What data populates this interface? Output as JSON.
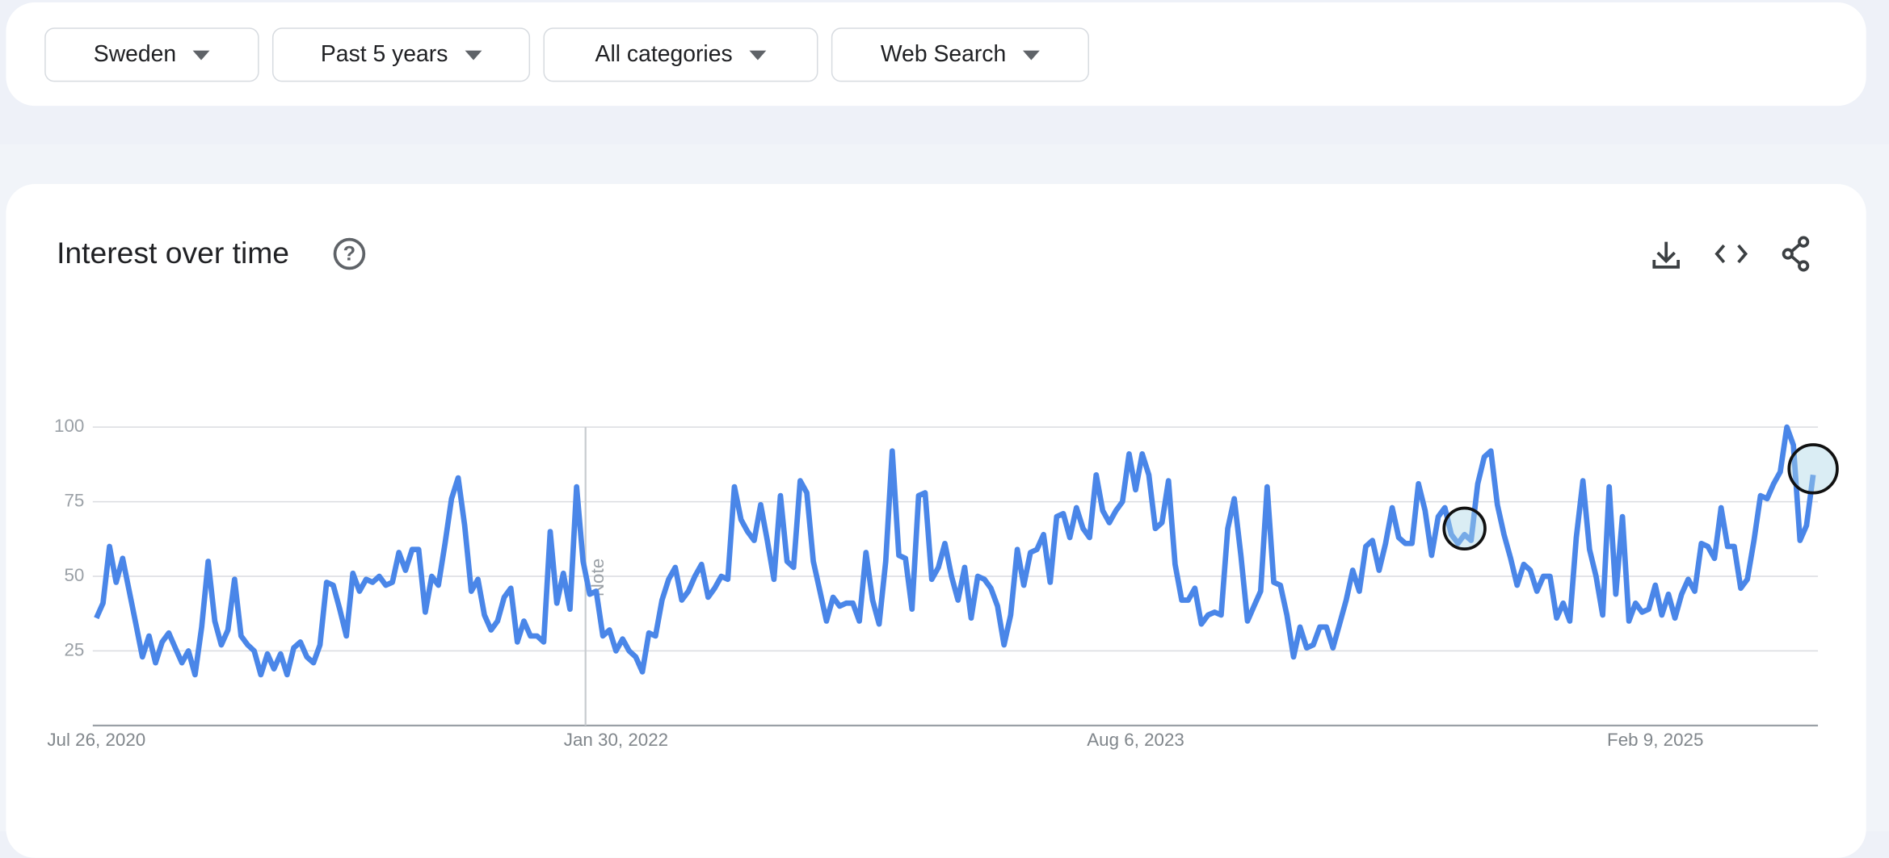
{
  "filters": [
    "Sweden",
    "Past 5 years",
    "All categories",
    "Web Search"
  ],
  "chart_data": {
    "type": "line",
    "title": "Interest over time",
    "note": "Note",
    "color": "#4a86e8",
    "categories": [
      "Jul 26, 2020",
      null,
      null,
      null,
      null,
      null,
      null,
      null,
      null,
      null,
      null,
      null,
      null,
      null,
      null,
      null,
      null,
      null,
      null,
      null,
      null,
      null,
      null,
      null,
      null,
      null,
      null,
      null,
      null,
      null,
      null,
      null,
      null,
      null,
      null,
      null,
      null,
      null,
      null,
      null,
      null,
      null,
      null,
      null,
      null,
      null,
      null,
      null,
      null,
      null,
      null,
      null,
      null,
      null,
      null,
      null,
      null,
      null,
      null,
      null,
      null,
      null,
      null,
      null,
      null,
      null,
      null,
      null,
      null,
      null,
      null,
      null,
      null,
      null,
      null,
      null,
      null,
      null,
      null,
      "Jan 30, 2022",
      null,
      null,
      null,
      null,
      null,
      null,
      null,
      null,
      null,
      null,
      null,
      null,
      null,
      null,
      null,
      null,
      null,
      null,
      null,
      null,
      null,
      null,
      null,
      null,
      null,
      null,
      null,
      null,
      null,
      null,
      null,
      null,
      null,
      null,
      null,
      null,
      null,
      null,
      null,
      null,
      null,
      null,
      null,
      null,
      null,
      null,
      null,
      null,
      null,
      null,
      null,
      null,
      null,
      null,
      null,
      null,
      null,
      null,
      null,
      null,
      null,
      null,
      null,
      null,
      null,
      null,
      null,
      null,
      null,
      null,
      null,
      null,
      null,
      null,
      null,
      null,
      null,
      null,
      "Aug 6, 2023",
      null,
      null,
      null,
      null,
      null,
      null,
      null,
      null,
      null,
      null,
      null,
      null,
      null,
      null,
      null,
      null,
      null,
      null,
      null,
      null,
      null,
      null,
      null,
      null,
      null,
      null,
      null,
      null,
      null,
      null,
      null,
      null,
      null,
      null,
      null,
      null,
      null,
      null,
      null,
      null,
      null,
      null,
      null,
      null,
      null,
      null,
      null,
      null,
      null,
      null,
      null,
      null,
      null,
      null,
      null,
      null,
      null,
      null,
      null,
      null,
      null,
      null,
      null,
      null,
      null,
      null,
      null,
      null,
      null,
      null,
      null,
      null,
      null,
      null,
      null,
      null,
      null,
      null,
      "Feb 9, 2025",
      null,
      null,
      null,
      null,
      null,
      null,
      null,
      null,
      null,
      null,
      null,
      null,
      null,
      null,
      null,
      null,
      null,
      null,
      null,
      null,
      null,
      null,
      null,
      null
    ],
    "values": [
      36,
      41,
      60,
      48,
      56,
      45,
      34,
      23,
      30,
      21,
      28,
      31,
      26,
      21,
      25,
      17,
      33,
      55,
      35,
      27,
      32,
      49,
      30,
      27,
      25,
      17,
      24,
      19,
      24,
      17,
      26,
      28,
      23,
      21,
      27,
      48,
      47,
      39,
      30,
      51,
      45,
      49,
      48,
      50,
      47,
      48,
      58,
      52,
      59,
      59,
      38,
      50,
      47,
      61,
      76,
      83,
      67,
      45,
      49,
      37,
      32,
      35,
      43,
      46,
      28,
      35,
      30,
      30,
      28,
      65,
      41,
      51,
      39,
      80,
      55,
      44,
      45,
      30,
      32,
      25,
      29,
      25,
      23,
      18,
      31,
      30,
      42,
      49,
      53,
      42,
      45,
      50,
      54,
      43,
      46,
      50,
      49,
      80,
      69,
      65,
      62,
      74,
      62,
      49,
      77,
      55,
      53,
      82,
      78,
      55,
      45,
      35,
      43,
      40,
      41,
      41,
      35,
      58,
      42,
      34,
      55,
      92,
      57,
      56,
      39,
      77,
      78,
      49,
      53,
      61,
      50,
      42,
      53,
      36,
      50,
      49,
      46,
      40,
      27,
      37,
      59,
      47,
      58,
      59,
      64,
      48,
      70,
      71,
      63,
      73,
      66,
      63,
      84,
      72,
      68,
      72,
      75,
      91,
      79,
      91,
      84,
      66,
      68,
      82,
      54,
      42,
      42,
      46,
      34,
      37,
      38,
      37,
      66,
      76,
      57,
      35,
      40,
      45,
      80,
      48,
      47,
      37,
      23,
      33,
      26,
      27,
      33,
      33,
      26,
      34,
      42,
      52,
      45,
      60,
      62,
      52,
      61,
      73,
      63,
      61,
      61,
      81,
      72,
      57,
      70,
      73,
      64,
      61,
      64,
      62,
      81,
      90,
      92,
      74,
      64,
      56,
      47,
      54,
      52,
      45,
      50,
      50,
      36,
      41,
      35,
      63,
      82,
      59,
      50,
      37,
      80,
      44,
      70,
      35,
      41,
      38,
      39,
      47,
      37,
      44,
      36,
      44,
      49,
      45,
      61,
      60,
      56,
      73,
      60,
      60,
      46,
      49,
      62,
      77,
      76,
      81,
      85,
      100,
      94,
      62,
      67,
      84
    ],
    "ylim": [
      0,
      100
    ],
    "yticks": [
      25,
      50,
      75,
      100
    ],
    "grid": true
  }
}
